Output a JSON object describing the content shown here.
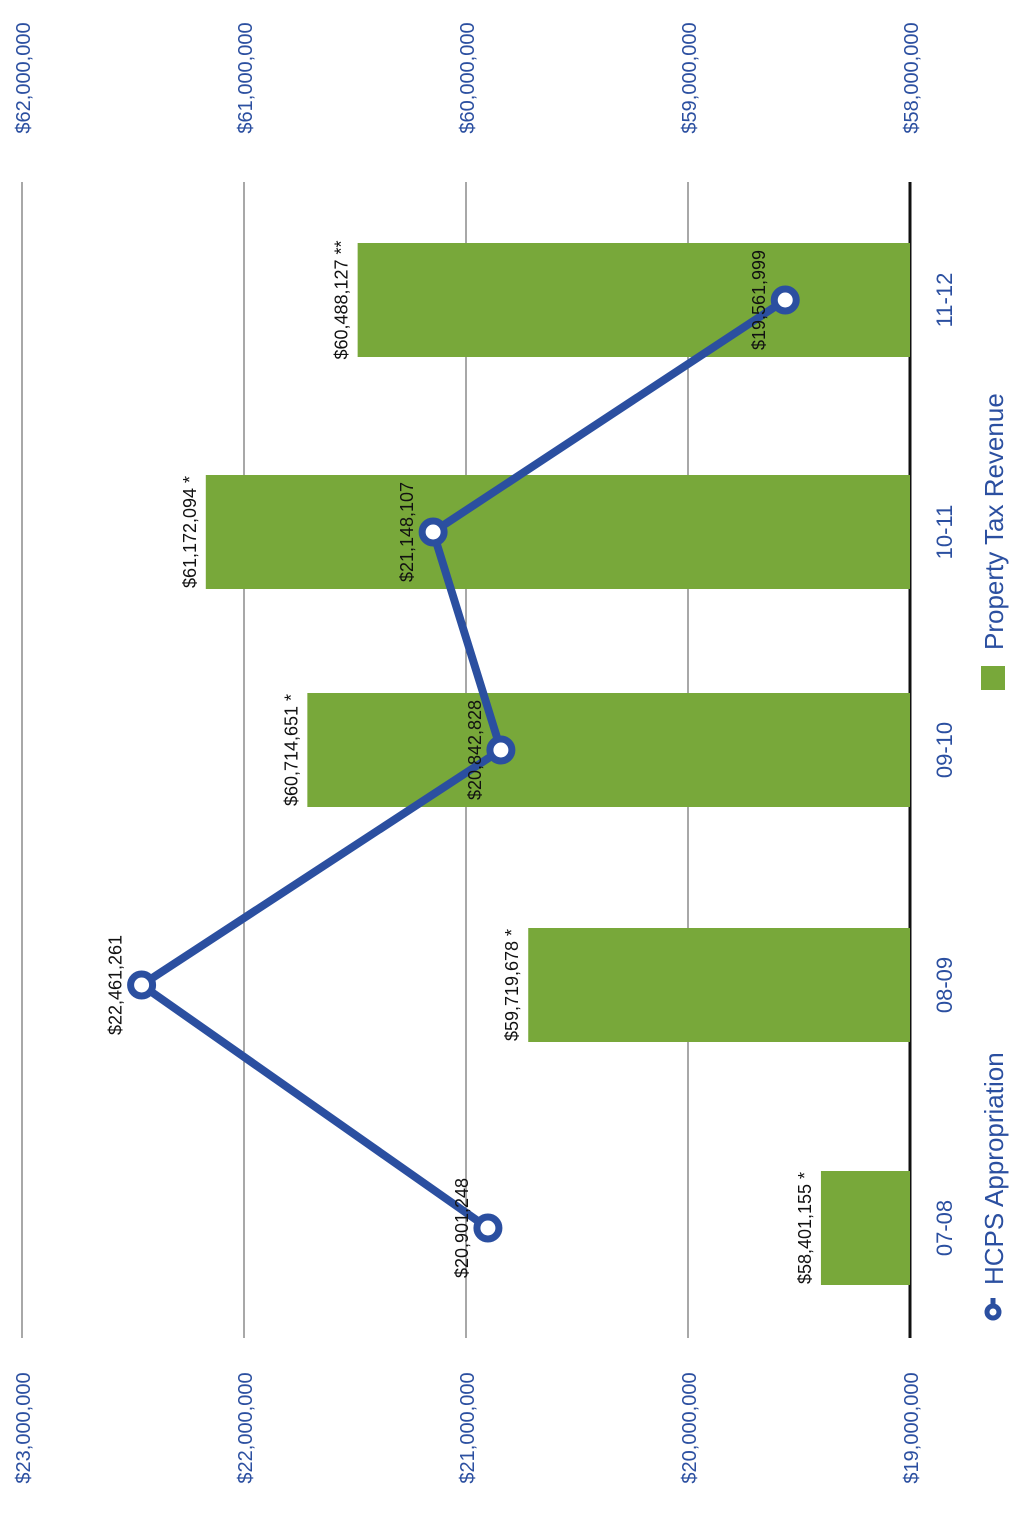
{
  "chart_data": {
    "type": "bar",
    "orientation": "rotated 90 degrees clockwise",
    "categories": [
      "07-08",
      "08-09",
      "09-10",
      "10-11",
      "11-12"
    ],
    "series": [
      {
        "name": "Property Tax Revenue",
        "type": "bar",
        "axis": "secondary",
        "values": [
          58401155,
          59719678,
          60714651,
          61172094,
          60488127
        ],
        "labels": [
          "$58,401,155 *",
          "$59,719,678 *",
          "$60,714,651 *",
          "$61,172,094 *",
          "$60,488,127 **"
        ],
        "color": "#78a83a"
      },
      {
        "name": "HCPS Appropriation",
        "type": "line",
        "axis": "primary",
        "values": [
          20901248,
          22461261,
          20842828,
          21148107,
          19561999
        ],
        "labels": [
          "$20,901,248",
          "$22,461,261",
          "$20,842,828",
          "$21,148,107",
          "$19,561,999"
        ],
        "color": "#2b4fa0"
      }
    ],
    "primary_axis": {
      "range": [
        19000000,
        23000000
      ],
      "ticks": [
        "$19,000,000",
        "$20,000,000",
        "$21,000,000",
        "$22,000,000",
        "$23,000,000"
      ]
    },
    "secondary_axis": {
      "range": [
        58000000,
        62000000
      ],
      "ticks": [
        "$58,000,000",
        "$59,000,000",
        "$60,000,000",
        "$61,000,000",
        "$62,000,000"
      ]
    },
    "grid": true,
    "legend_position": "bottom"
  },
  "legend": {
    "line_label": "HCPS Appropriation",
    "bar_label": "Property Tax Revenue"
  }
}
